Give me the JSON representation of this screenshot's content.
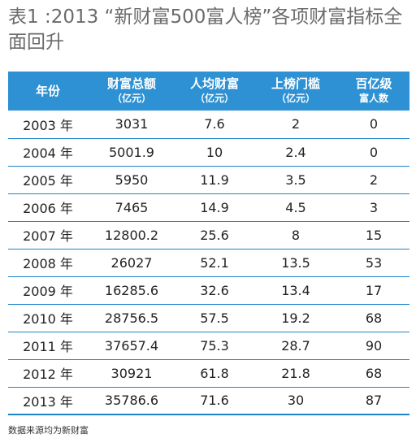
{
  "title": "表1 :2013 “新财富500富人榜”各项财富指标全面回升",
  "table": {
    "headers": [
      {
        "label": "年份",
        "unit": ""
      },
      {
        "label": "财富总额",
        "unit": "（亿元）"
      },
      {
        "label": "人均财富",
        "unit": "（亿元）"
      },
      {
        "label": "上榜门槛",
        "unit": "（亿元）"
      },
      {
        "label": "百亿级",
        "unit": "富人数"
      }
    ],
    "rows": [
      [
        "2003 年",
        "3031",
        "7.6",
        "2",
        "0"
      ],
      [
        "2004 年",
        "5001.9",
        "10",
        "2.4",
        "0"
      ],
      [
        "2005 年",
        "5950",
        "11.9",
        "3.5",
        "2"
      ],
      [
        "2006 年",
        "7465",
        "14.9",
        "4.5",
        "3"
      ],
      [
        "2007 年",
        "12800.2",
        "25.6",
        "8",
        "15"
      ],
      [
        "2008 年",
        "26027",
        "52.1",
        "13.5",
        "53"
      ],
      [
        "2009 年",
        "16285.6",
        "32.6",
        "13.4",
        "17"
      ],
      [
        "2010 年",
        "28756.5",
        "57.5",
        "19.2",
        "68"
      ],
      [
        "2011 年",
        "37657.4",
        "75.3",
        "28.7",
        "90"
      ],
      [
        "2012 年",
        "30921",
        "61.8",
        "21.8",
        "68"
      ],
      [
        "2013 年",
        "35786.6",
        "71.6",
        "30",
        "87"
      ]
    ]
  },
  "footnote": "数据来源均为新财富",
  "colors": {
    "header_bg": "#2e91d3",
    "rule": "#1e84c9",
    "title": "#6b6b6b"
  }
}
